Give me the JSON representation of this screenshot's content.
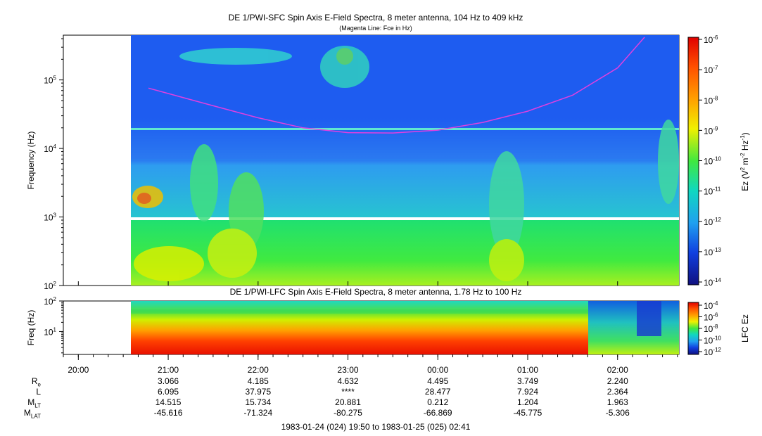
{
  "chart_data": [
    {
      "type": "heatmap",
      "title": "DE 1/PWI-SFC  Spin Axis E-Field Spectra, 8 meter antenna, 104 Hz to 409 kHz",
      "subtitle": "(Magenta Line: Fce in Hz)",
      "ylabel": "Frequency (Hz)",
      "yscale": "log",
      "ylim": [
        100,
        450000
      ],
      "yticks": [
        {
          "base": "10",
          "exp": "2"
        },
        {
          "base": "10",
          "exp": "3"
        },
        {
          "base": "10",
          "exp": "4"
        },
        {
          "base": "10",
          "exp": "5"
        }
      ],
      "colorbar": {
        "label": "Ez (V² m⁻² Hz⁻¹)",
        "scale": "log",
        "range": [
          1e-14,
          1e-06
        ],
        "ticks": [
          {
            "base": "10",
            "exp": "-6"
          },
          {
            "base": "10",
            "exp": "-7"
          },
          {
            "base": "10",
            "exp": "-8"
          },
          {
            "base": "10",
            "exp": "-9"
          },
          {
            "base": "10",
            "exp": "-10"
          },
          {
            "base": "10",
            "exp": "-11"
          },
          {
            "base": "10",
            "exp": "-12"
          },
          {
            "base": "10",
            "exp": "-13"
          },
          {
            "base": "10",
            "exp": "-14"
          }
        ]
      },
      "overlay_line": {
        "name": "Fce",
        "color": "#e040e0",
        "x_hours": [
          20.78,
          21.5,
          22.0,
          22.5,
          23.0,
          23.5,
          24.0,
          24.5,
          25.0,
          25.5,
          26.0,
          26.3
        ],
        "y_hz": [
          76000,
          42000,
          28000,
          20000,
          17000,
          16800,
          18500,
          24000,
          35000,
          60000,
          150000,
          420000
        ]
      }
    },
    {
      "type": "heatmap",
      "title": "DE 1/PWI-LFC  Spin Axis E-Field Spectra, 8 meter antenna, 1.78 Hz to 100 Hz",
      "ylabel": "Freq (Hz)",
      "yscale": "log",
      "ylim": [
        1.78,
        100
      ],
      "yticks": [
        {
          "base": "10",
          "exp": "1"
        },
        {
          "base": "10",
          "exp": "2"
        }
      ],
      "colorbar": {
        "label": "LFC Ez",
        "scale": "log",
        "range": [
          1e-12,
          0.0001
        ],
        "ticks": [
          {
            "base": "10",
            "exp": "-4"
          },
          {
            "base": "10",
            "exp": "-6"
          },
          {
            "base": "10",
            "exp": "-8"
          },
          {
            "base": "10",
            "exp": "-10"
          },
          {
            "base": "10",
            "exp": "-12"
          }
        ]
      }
    }
  ],
  "xaxis": {
    "tick_labels": [
      "20:00",
      "21:00",
      "22:00",
      "23:00",
      "00:00",
      "01:00",
      "02:00"
    ],
    "tick_hours": [
      20,
      21,
      22,
      23,
      24,
      25,
      26
    ],
    "xlim_hours": [
      19.833,
      26.683
    ],
    "data_start_hour": 20.6
  },
  "ephemeris": {
    "rows": [
      {
        "label": "R",
        "sub": "e",
        "values": [
          "3.066",
          "4.185",
          "4.632",
          "4.495",
          "3.749",
          "2.240"
        ]
      },
      {
        "label": "L",
        "sub": "",
        "values": [
          "6.095",
          "37.975",
          "****",
          "28.477",
          "7.924",
          "2.364"
        ]
      },
      {
        "label": "M",
        "sub": "LT",
        "values": [
          "14.515",
          "15.734",
          "20.881",
          "0.212",
          "1.204",
          "1.963"
        ]
      },
      {
        "label": "M",
        "sub": "LAT",
        "values": [
          "-45.616",
          "-71.324",
          "-80.275",
          "-66.869",
          "-45.775",
          "-5.306"
        ]
      }
    ]
  },
  "time_range": "1983-01-24 (024) 19:50 to 1983-01-25 (025) 02:41"
}
